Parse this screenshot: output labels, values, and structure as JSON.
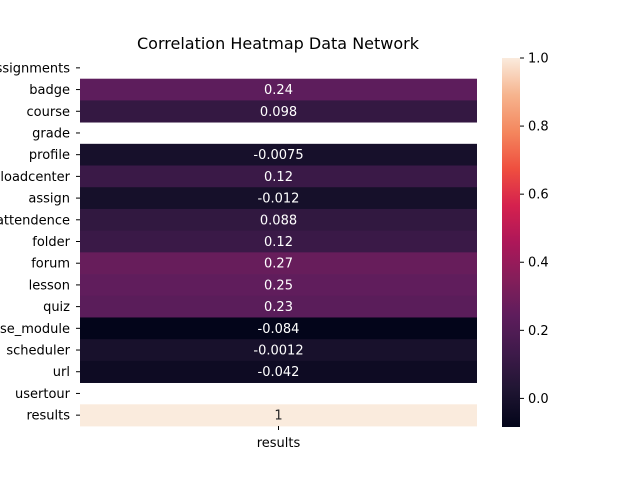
{
  "chart_data": {
    "type": "heatmap",
    "title": "Correlation  Heatmap Data Network",
    "xlabel": "",
    "ylabel": "",
    "columns": [
      "results"
    ],
    "rows": [
      {
        "label": "assignments",
        "value": null,
        "text": ""
      },
      {
        "label": "badge",
        "value": 0.24,
        "text": "0.24"
      },
      {
        "label": "course",
        "value": 0.098,
        "text": "0.098"
      },
      {
        "label": "grade",
        "value": null,
        "text": ""
      },
      {
        "label": "profile",
        "value": -0.0075,
        "text": "-0.0075"
      },
      {
        "label": "downloadcenter",
        "value": 0.12,
        "text": "0.12"
      },
      {
        "label": "assign",
        "value": -0.012,
        "text": "-0.012"
      },
      {
        "label": "attendence",
        "value": 0.088,
        "text": "0.088"
      },
      {
        "label": "folder",
        "value": 0.12,
        "text": "0.12"
      },
      {
        "label": "forum",
        "value": 0.27,
        "text": "0.27"
      },
      {
        "label": "lesson",
        "value": 0.25,
        "text": "0.25"
      },
      {
        "label": "quiz",
        "value": 0.23,
        "text": "0.23"
      },
      {
        "label": "course_module",
        "value": -0.084,
        "text": "-0.084"
      },
      {
        "label": "scheduler",
        "value": -0.0012,
        "text": "-0.0012"
      },
      {
        "label": "url",
        "value": -0.042,
        "text": "-0.042"
      },
      {
        "label": "usertour",
        "value": null,
        "text": ""
      },
      {
        "label": "results",
        "value": 1,
        "text": "1"
      }
    ],
    "colorbar": {
      "colormap": "rocket",
      "vmin": -0.084,
      "vmax": 1.0,
      "ticks": [
        {
          "value": 0.0,
          "label": "0.0"
        },
        {
          "value": 0.2,
          "label": "0.2"
        },
        {
          "value": 0.4,
          "label": "0.4"
        },
        {
          "value": 0.6,
          "label": "0.6"
        },
        {
          "value": 0.8,
          "label": "0.8"
        },
        {
          "value": 1.0,
          "label": "1.0"
        }
      ]
    },
    "colormap_stops": [
      "#03051a",
      "#1f1532",
      "#3e1a4a",
      "#5d1d5c",
      "#841e5a",
      "#ad1759",
      "#d5214e",
      "#ef4f3f",
      "#f4875e",
      "#f6b48e",
      "#faebdd"
    ]
  }
}
